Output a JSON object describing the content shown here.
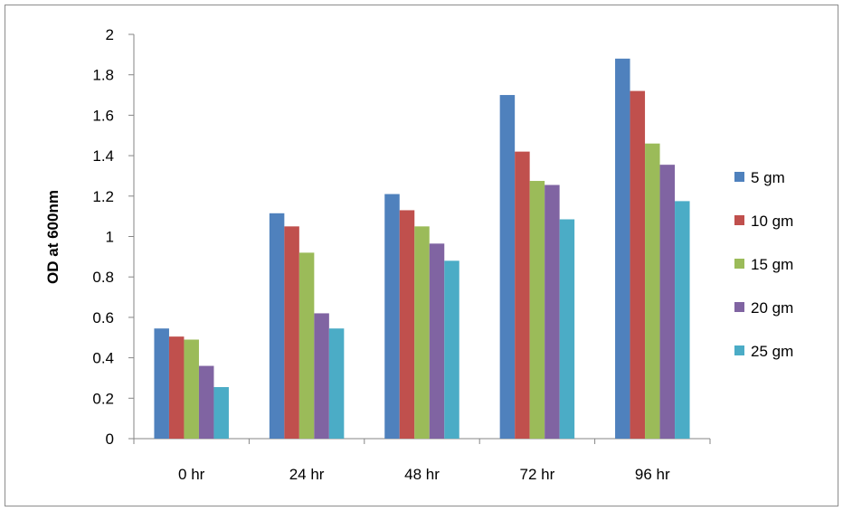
{
  "chart_data": {
    "type": "bar",
    "title": "",
    "xlabel": "",
    "ylabel": "OD at 600nm",
    "categories": [
      "0 hr",
      "24 hr",
      "48 hr",
      "72 hr",
      "96 hr"
    ],
    "ylim": [
      0,
      2
    ],
    "yticks": [
      "0",
      "0.2",
      "0.4",
      "0.6",
      "0.8",
      "1",
      "1.2",
      "1.4",
      "1.6",
      "1.8",
      "2"
    ],
    "grid": false,
    "legend_position": "right",
    "series": [
      {
        "name": "5 gm",
        "color": "#4F81BD",
        "values": [
          0.545,
          1.115,
          1.21,
          1.7,
          1.88
        ]
      },
      {
        "name": "10 gm",
        "color": "#C0504D",
        "values": [
          0.505,
          1.05,
          1.13,
          1.42,
          1.72
        ]
      },
      {
        "name": "15 gm",
        "color": "#9BBB59",
        "values": [
          0.49,
          0.92,
          1.05,
          1.275,
          1.46
        ]
      },
      {
        "name": "20 gm",
        "color": "#8064A2",
        "values": [
          0.36,
          0.62,
          0.965,
          1.255,
          1.355
        ]
      },
      {
        "name": "25 gm",
        "color": "#4BACC6",
        "values": [
          0.255,
          0.545,
          0.88,
          1.085,
          1.175
        ]
      }
    ]
  }
}
